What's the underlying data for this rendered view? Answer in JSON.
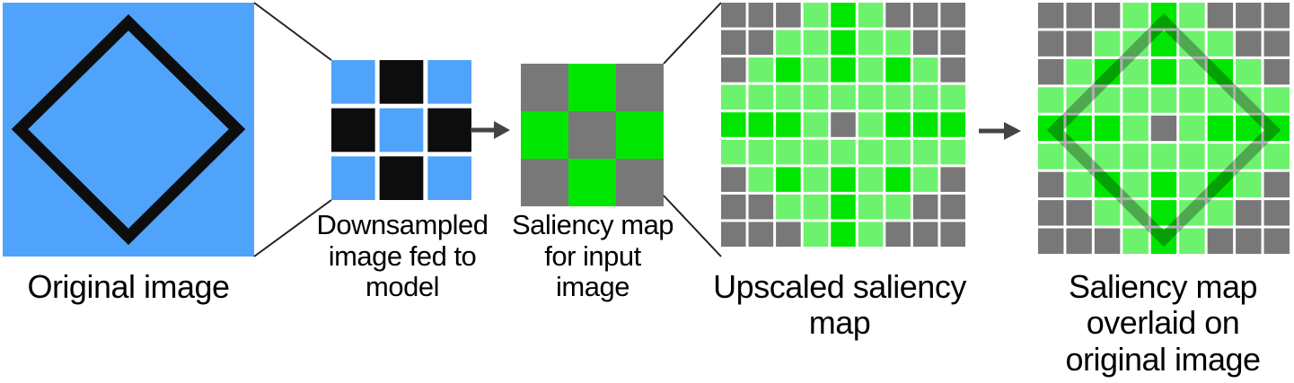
{
  "labels": {
    "original": [
      "Original image"
    ],
    "downsampled": [
      "Downsampled",
      "image fed to",
      "model"
    ],
    "saliency_input": [
      "Saliency map",
      "for input",
      "image"
    ],
    "upscaled": [
      "Upscaled saliency",
      "map"
    ],
    "overlay": [
      "Saliency map",
      "overlaid on",
      "original image"
    ]
  },
  "colors": {
    "image_blue": "#4fa3fb",
    "black": "#0d0d0d",
    "gray": "#787878",
    "bright_green": "#00e600",
    "light_green": "#6df26d",
    "arrow": "#444444"
  },
  "downsampled_grid": [
    [
      "blue",
      "black",
      "blue"
    ],
    [
      "black",
      "blue",
      "black"
    ],
    [
      "blue",
      "black",
      "blue"
    ]
  ],
  "saliency_grid": [
    [
      "gray",
      "green",
      "gray"
    ],
    [
      "green",
      "gray",
      "green"
    ],
    [
      "gray",
      "green",
      "gray"
    ]
  ],
  "upscaled_grid": [
    [
      "gray",
      "gray",
      "gray",
      "light",
      "bright",
      "light",
      "gray",
      "gray",
      "gray"
    ],
    [
      "gray",
      "gray",
      "light",
      "light",
      "bright",
      "light",
      "light",
      "gray",
      "gray"
    ],
    [
      "gray",
      "light",
      "bright",
      "light",
      "bright",
      "light",
      "bright",
      "light",
      "gray"
    ],
    [
      "light",
      "light",
      "light",
      "light",
      "light",
      "light",
      "light",
      "light",
      "light"
    ],
    [
      "bright",
      "bright",
      "bright",
      "light",
      "gray",
      "light",
      "bright",
      "bright",
      "bright"
    ],
    [
      "light",
      "light",
      "light",
      "light",
      "light",
      "light",
      "light",
      "light",
      "light"
    ],
    [
      "gray",
      "light",
      "bright",
      "light",
      "bright",
      "light",
      "bright",
      "light",
      "gray"
    ],
    [
      "gray",
      "gray",
      "light",
      "light",
      "bright",
      "light",
      "light",
      "gray",
      "gray"
    ],
    [
      "gray",
      "gray",
      "gray",
      "light",
      "bright",
      "light",
      "gray",
      "gray",
      "gray"
    ]
  ]
}
